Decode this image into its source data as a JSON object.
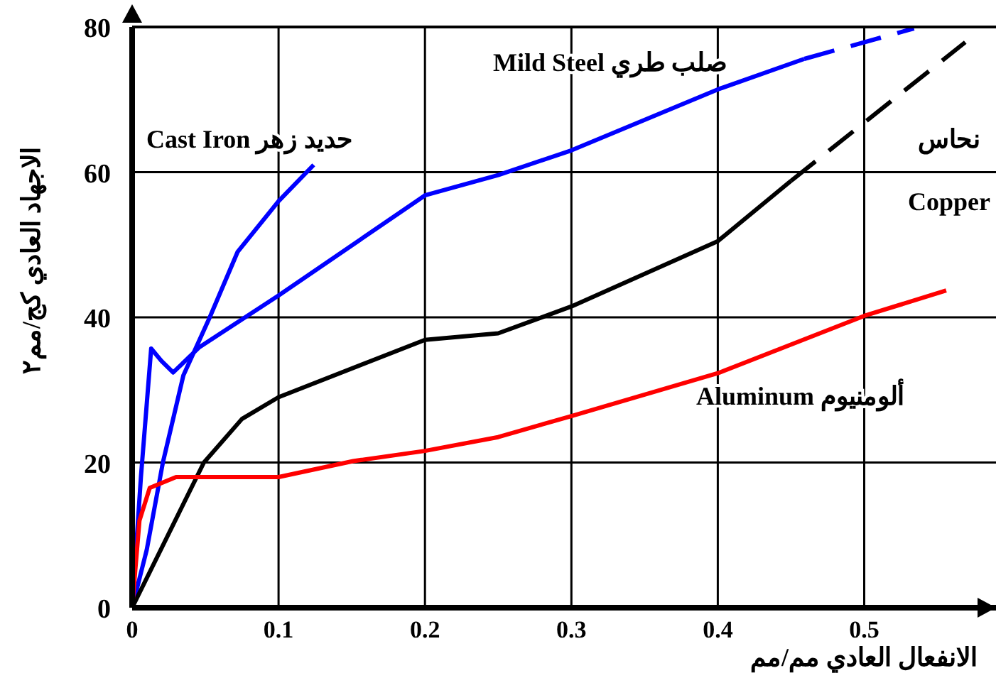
{
  "chart_data": {
    "type": "line",
    "xlabel": "الانفعال العادي مم/مم",
    "ylabel": "الاجهاد العادي  كج/مم٢",
    "xlim": [
      0,
      0.59
    ],
    "ylim": [
      0,
      80
    ],
    "xticks": [
      0,
      0.1,
      0.2,
      0.3,
      0.4,
      0.5
    ],
    "yticks": [
      0,
      20,
      40,
      60,
      80
    ],
    "grid": true,
    "series": [
      {
        "color": "#0000ff",
        "line_style": "solid",
        "x": [
          0,
          0.01,
          0.021,
          0.035,
          0.053,
          0.072,
          0.1,
          0.124
        ],
        "values": [
          0,
          8,
          20,
          32,
          40,
          49,
          56,
          61
        ]
      },
      {
        "color": "#0000ff",
        "line_style": "solid",
        "x": [
          0,
          0.006,
          0.013,
          0.02,
          0.028,
          0.046,
          0.1,
          0.2,
          0.25,
          0.3,
          0.4,
          0.459
        ],
        "values": [
          0,
          18,
          35.7,
          34,
          32.4,
          35.9,
          43,
          56.8,
          59.6,
          63,
          71.4,
          75.6
        ]
      },
      {
        "color": "#0000ff",
        "line_style": "dashed",
        "x": [
          0.459,
          0.534
        ],
        "values": [
          75.6,
          79.8
        ]
      },
      {
        "color": "#000000",
        "line_style": "solid",
        "x": [
          0,
          0.049,
          0.075,
          0.1,
          0.2,
          0.25,
          0.3,
          0.4,
          0.45
        ],
        "values": [
          0,
          20,
          26,
          29,
          36.9,
          37.8,
          41.5,
          50.5,
          58.8
        ]
      },
      {
        "color": "#000000",
        "line_style": "dashed",
        "x": [
          0.45,
          0.569
        ],
        "values": [
          58.8,
          77.9
        ]
      },
      {
        "color": "#ff0000",
        "line_style": "solid",
        "x": [
          0,
          0.005,
          0.012,
          0.03,
          0.1,
          0.151,
          0.2,
          0.25,
          0.3,
          0.4,
          0.5,
          0.556
        ],
        "values": [
          0,
          12,
          16.5,
          18,
          18,
          20.2,
          21.6,
          23.5,
          26.4,
          32.3,
          40.2,
          43.7
        ]
      }
    ],
    "annotations": [
      "Cast Iron  حديد زهر",
      "Mild Steel  صلب طري",
      "نحاس",
      "Copper",
      "Aluminum  ألومنيوم"
    ]
  }
}
